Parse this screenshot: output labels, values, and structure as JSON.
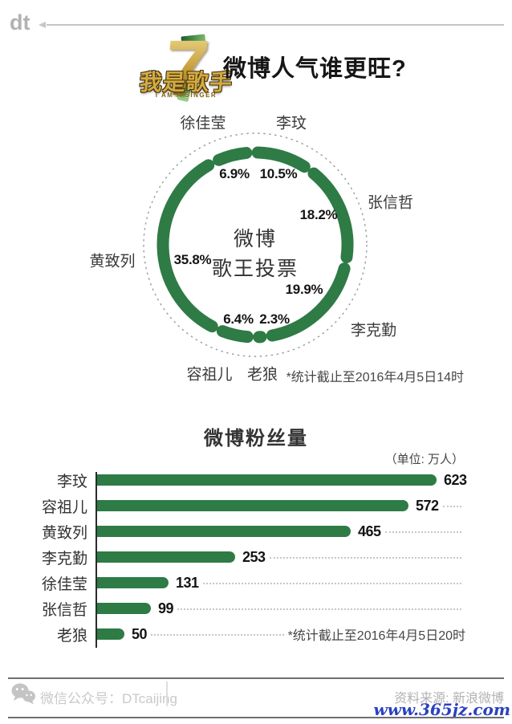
{
  "header": {
    "brand": "dt",
    "logo": {
      "number": "7",
      "title": "我是歌手",
      "subtitle": "I AM A SINGER"
    },
    "title": "微博人气谁更旺?"
  },
  "colors": {
    "green": "#2e7b45",
    "link_blue": "#2a41c0"
  },
  "chart_data": [
    {
      "type": "donut",
      "title": "微博歌王投票",
      "center_label_lines": [
        "微博",
        "歌王投票"
      ],
      "unit": "%",
      "start_angle_deg": -92,
      "clockwise": true,
      "series": [
        {
          "name": "李玟",
          "value": 10.5
        },
        {
          "name": "张信哲",
          "value": 18.2
        },
        {
          "name": "李克勤",
          "value": 19.9
        },
        {
          "name": "老狼",
          "value": 2.3
        },
        {
          "name": "容祖儿",
          "value": 6.4
        },
        {
          "name": "黄致列",
          "value": 35.8
        },
        {
          "name": "徐佳莹",
          "value": 6.9
        }
      ],
      "note": "*统计截止至2016年4月5日14时"
    },
    {
      "type": "bar",
      "title": "微博粉丝量",
      "unit_label": "（单位: 万人）",
      "categories": [
        "李玟",
        "容祖儿",
        "黄致列",
        "李克勤",
        "徐佳莹",
        "张信哲",
        "老狼"
      ],
      "values": [
        623,
        572,
        465,
        253,
        131,
        99,
        50
      ],
      "xlim": [
        0,
        650
      ],
      "note": "*统计截止至2016年4月5日20时"
    }
  ],
  "footer": {
    "wechat_label": "微信公众号：DTcaijing",
    "source": "资料来源: 新浪微博",
    "watermark": "www.365jz.com"
  }
}
